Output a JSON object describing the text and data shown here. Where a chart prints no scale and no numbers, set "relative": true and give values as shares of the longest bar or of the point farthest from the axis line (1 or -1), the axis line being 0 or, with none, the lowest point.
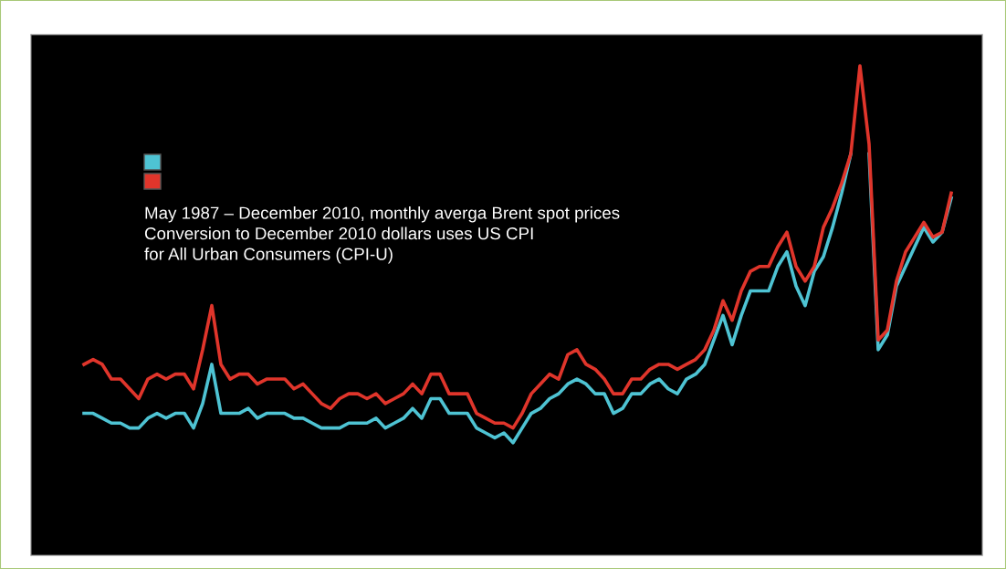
{
  "chart_data": {
    "type": "line",
    "relative": true,
    "tick_labels": false,
    "categories": [
      null,
      null,
      null,
      null,
      null,
      null,
      null,
      null,
      null,
      null,
      null,
      null,
      null,
      null,
      null,
      null,
      null,
      null,
      null,
      null,
      null,
      null,
      null,
      null,
      null,
      null,
      null,
      null,
      null,
      null,
      null,
      null,
      null,
      null,
      null,
      null,
      null,
      null,
      null,
      null,
      null,
      null,
      null,
      null,
      null,
      null,
      null,
      null,
      null,
      null,
      null,
      null,
      null,
      null,
      null,
      null,
      null,
      null,
      null,
      null,
      null,
      null,
      null,
      null,
      null,
      null,
      null,
      null,
      null,
      null,
      null,
      null,
      null,
      null,
      null,
      null,
      null,
      null,
      null,
      null,
      null,
      null,
      null,
      null,
      null,
      null,
      null,
      null,
      null,
      null,
      null,
      null,
      null,
      null,
      null,
      null
    ],
    "series": [
      {
        "color": "#4ec3d3",
        "values": [
          0.29,
          0.29,
          0.28,
          0.27,
          0.27,
          0.26,
          0.26,
          0.28,
          0.29,
          0.28,
          0.29,
          0.29,
          0.26,
          0.31,
          0.39,
          0.29,
          0.29,
          0.29,
          0.3,
          0.28,
          0.29,
          0.29,
          0.29,
          0.28,
          0.28,
          0.27,
          0.26,
          0.26,
          0.26,
          0.27,
          0.27,
          0.27,
          0.28,
          0.26,
          0.27,
          0.28,
          0.3,
          0.28,
          0.32,
          0.32,
          0.29,
          0.29,
          0.29,
          0.26,
          0.25,
          0.24,
          0.25,
          0.23,
          0.26,
          0.29,
          0.3,
          0.32,
          0.33,
          0.35,
          0.36,
          0.35,
          0.33,
          0.33,
          0.29,
          0.3,
          0.33,
          0.33,
          0.35,
          0.36,
          0.34,
          0.33,
          0.36,
          0.37,
          0.39,
          0.44,
          0.49,
          0.43,
          0.49,
          0.54,
          0.54,
          0.54,
          0.59,
          0.62,
          0.55,
          0.51,
          0.58,
          0.61,
          0.67,
          0.74,
          0.82,
          null,
          0.82,
          0.42,
          0.45,
          0.55,
          0.59,
          0.63,
          0.67,
          0.64,
          0.66,
          0.73
        ]
      },
      {
        "color": "#e0352b",
        "values": [
          0.39,
          0.4,
          0.39,
          0.36,
          0.36,
          0.34,
          0.32,
          0.36,
          0.37,
          0.36,
          0.37,
          0.37,
          0.34,
          0.42,
          0.51,
          0.39,
          0.36,
          0.37,
          0.37,
          0.35,
          0.36,
          0.36,
          0.36,
          0.34,
          0.35,
          0.33,
          0.31,
          0.3,
          0.32,
          0.33,
          0.33,
          0.32,
          0.33,
          0.31,
          0.32,
          0.33,
          0.35,
          0.33,
          0.37,
          0.37,
          0.33,
          0.33,
          0.33,
          0.29,
          0.28,
          0.27,
          0.27,
          0.26,
          0.29,
          0.33,
          0.35,
          0.37,
          0.36,
          0.41,
          0.42,
          0.39,
          0.38,
          0.36,
          0.33,
          0.33,
          0.36,
          0.36,
          0.38,
          0.39,
          0.39,
          0.38,
          0.39,
          0.4,
          0.42,
          0.46,
          0.52,
          0.48,
          0.54,
          0.58,
          0.59,
          0.59,
          0.63,
          0.66,
          0.59,
          0.56,
          0.59,
          0.67,
          0.71,
          0.76,
          0.82,
          1,
          0.84,
          0.44,
          0.46,
          0.56,
          0.62,
          0.65,
          0.68,
          0.65,
          0.66,
          0.74
        ]
      }
    ],
    "annotations": [
      "May 1987 – December 2010, monthly averga Brent spot prices",
      "Conversion to December 2010 dollars uses US CPI",
      "for All Urban Consumers (CPI-U)"
    ]
  }
}
